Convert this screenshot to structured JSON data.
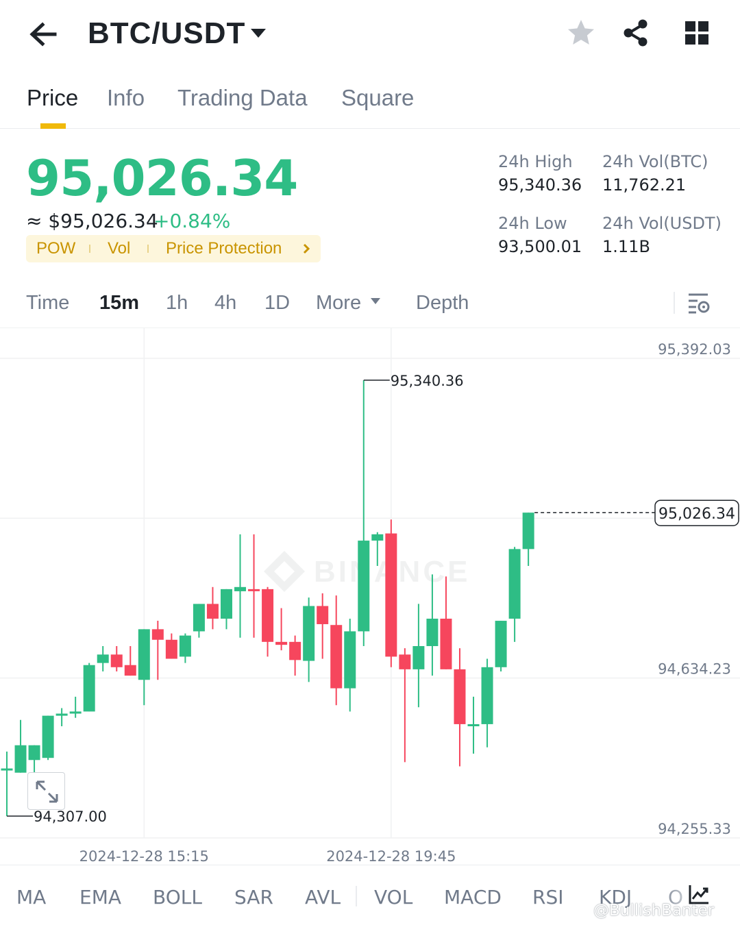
{
  "header": {
    "pair": "BTC/USDT",
    "icons": [
      "back-arrow-icon",
      "caret-down-icon",
      "star-icon",
      "share-icon",
      "grid-icon"
    ]
  },
  "tabs": [
    {
      "label": "Price",
      "active": true
    },
    {
      "label": "Info",
      "active": false
    },
    {
      "label": "Trading Data",
      "active": false
    },
    {
      "label": "Square",
      "active": false
    }
  ],
  "ticker": {
    "last_price": "95,026.34",
    "usd_price": "≈ $95,026.34",
    "change_pct": "+0.84%",
    "tags": [
      "POW",
      "Vol",
      "Price Protection"
    ],
    "stats": {
      "high_label": "24h High",
      "high_value": "95,340.36",
      "vol_btc_label": "24h Vol(BTC)",
      "vol_btc_value": "11,762.21",
      "low_label": "24h Low",
      "low_value": "93,500.01",
      "vol_usdt_label": "24h Vol(USDT)",
      "vol_usdt_value": "1.11B"
    }
  },
  "intervals": {
    "items": [
      "Time",
      "15m",
      "1h",
      "4h",
      "1D",
      "More",
      "Depth"
    ],
    "active": "15m"
  },
  "colors": {
    "up": "#2ebd85",
    "down": "#f6465d",
    "accent": "#f0b90b",
    "text_primary": "#1e2329",
    "text_secondary": "#707a8a"
  },
  "chart_data": {
    "type": "candlestick",
    "y_ticks": [
      "95,392.03",
      "94,634.23",
      "94,255.33"
    ],
    "y_tick_values": [
      95392.03,
      94634.23,
      94255.33
    ],
    "ylim": [
      94255.33,
      95392.03
    ],
    "x_ticks": [
      "2024-12-28 15:15",
      "2024-12-28 19:45"
    ],
    "x_tick_index": [
      10,
      28
    ],
    "last_price_label": "95,026.34",
    "last_price": 95026.34,
    "max_label": "95,340.36",
    "max_index": 26,
    "max_value": 95340.36,
    "min_label": "94,307.00",
    "min_index": 0,
    "min_value": 94307.0,
    "candles": [
      {
        "o": 94420,
        "h": 94460,
        "l": 94307,
        "c": 94420
      },
      {
        "o": 94410,
        "h": 94535,
        "l": 94410,
        "c": 94475
      },
      {
        "o": 94440,
        "h": 94475,
        "l": 94405,
        "c": 94475
      },
      {
        "o": 94445,
        "h": 94545,
        "l": 94440,
        "c": 94545
      },
      {
        "o": 94545,
        "h": 94563,
        "l": 94520,
        "c": 94550
      },
      {
        "o": 94550,
        "h": 94590,
        "l": 94540,
        "c": 94555
      },
      {
        "o": 94555,
        "h": 94670,
        "l": 94555,
        "c": 94665
      },
      {
        "o": 94670,
        "h": 94710,
        "l": 94650,
        "c": 94690
      },
      {
        "o": 94690,
        "h": 94710,
        "l": 94650,
        "c": 94660
      },
      {
        "o": 94665,
        "h": 94710,
        "l": 94640,
        "c": 94640
      },
      {
        "o": 94630,
        "h": 94750,
        "l": 94570,
        "c": 94750
      },
      {
        "o": 94750,
        "h": 94770,
        "l": 94630,
        "c": 94725
      },
      {
        "o": 94725,
        "h": 94740,
        "l": 94680,
        "c": 94680
      },
      {
        "o": 94685,
        "h": 94740,
        "l": 94670,
        "c": 94735
      },
      {
        "o": 94745,
        "h": 94810,
        "l": 94730,
        "c": 94810
      },
      {
        "o": 94810,
        "h": 94850,
        "l": 94750,
        "c": 94775
      },
      {
        "o": 94775,
        "h": 94845,
        "l": 94750,
        "c": 94845
      },
      {
        "o": 94840,
        "h": 94975,
        "l": 94730,
        "c": 94850
      },
      {
        "o": 94845,
        "h": 94975,
        "l": 94730,
        "c": 94842
      },
      {
        "o": 94845,
        "h": 94850,
        "l": 94685,
        "c": 94720
      },
      {
        "o": 94720,
        "h": 94800,
        "l": 94700,
        "c": 94713
      },
      {
        "o": 94720,
        "h": 94735,
        "l": 94640,
        "c": 94677
      },
      {
        "o": 94675,
        "h": 94825,
        "l": 94625,
        "c": 94805
      },
      {
        "o": 94805,
        "h": 94835,
        "l": 94680,
        "c": 94762
      },
      {
        "o": 94760,
        "h": 94830,
        "l": 94570,
        "c": 94610
      },
      {
        "o": 94610,
        "h": 94775,
        "l": 94555,
        "c": 94745
      },
      {
        "o": 94745,
        "h": 95340,
        "l": 94710,
        "c": 94960
      },
      {
        "o": 94960,
        "h": 94980,
        "l": 94900,
        "c": 94975
      },
      {
        "o": 94977,
        "h": 95010,
        "l": 94660,
        "c": 94685
      },
      {
        "o": 94690,
        "h": 94705,
        "l": 94435,
        "c": 94655
      },
      {
        "o": 94655,
        "h": 94810,
        "l": 94565,
        "c": 94710
      },
      {
        "o": 94710,
        "h": 94880,
        "l": 94640,
        "c": 94775
      },
      {
        "o": 94775,
        "h": 94875,
        "l": 94655,
        "c": 94655
      },
      {
        "o": 94655,
        "h": 94705,
        "l": 94425,
        "c": 94525
      },
      {
        "o": 94520,
        "h": 94590,
        "l": 94455,
        "c": 94525
      },
      {
        "o": 94525,
        "h": 94680,
        "l": 94470,
        "c": 94660
      },
      {
        "o": 94660,
        "h": 94770,
        "l": 94650,
        "c": 94770
      },
      {
        "o": 94775,
        "h": 94945,
        "l": 94720,
        "c": 94940
      },
      {
        "o": 94940,
        "h": 95026.34,
        "l": 94900,
        "c": 95026.34
      }
    ]
  },
  "indicators": {
    "items": [
      "MA",
      "EMA",
      "BOLL",
      "SAR",
      "AVL",
      "VOL",
      "MACD",
      "RSI",
      "KDJ",
      "O"
    ]
  },
  "watermark": {
    "user": "@BullishBanter"
  }
}
